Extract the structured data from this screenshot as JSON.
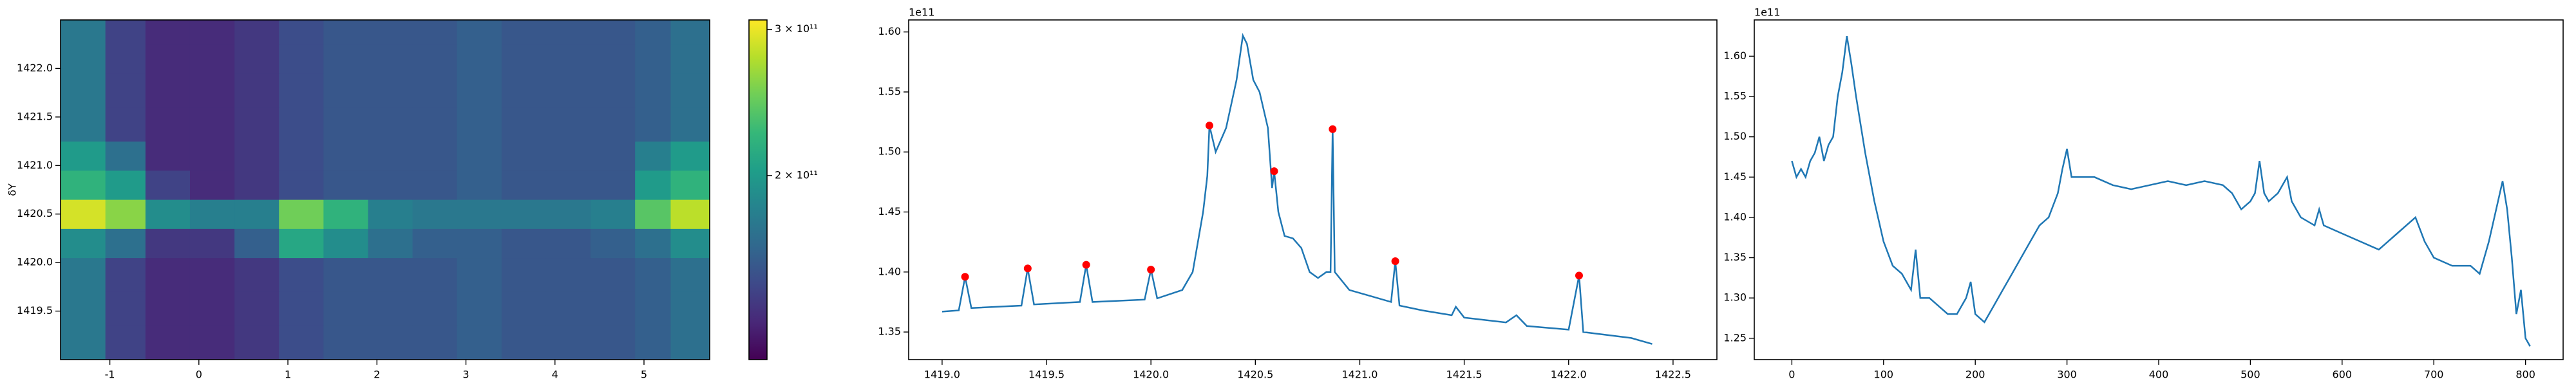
{
  "chart_data": [
    {
      "type": "heatmap",
      "y_label": "δY",
      "colormap": "viridis",
      "xlim": [
        -1.554,
        5.738
      ],
      "ylim": [
        1419.0,
        1422.5
      ],
      "xticks": [
        -1,
        0,
        1,
        2,
        3,
        4,
        5
      ],
      "yticks": [
        1419.5,
        {
          "value": 1420.0,
          "label": "1420.0"
        },
        1420.5,
        {
          "value": 1421.0,
          "label": "1421.0"
        },
        1421.5,
        {
          "value": 1422.0,
          "label": "1422.0"
        }
      ],
      "xbins": [
        -1.55,
        -1.05,
        -0.6,
        -0.1,
        0.4,
        0.9,
        1.4,
        1.9,
        2.4,
        2.9,
        3.4,
        3.9,
        4.4,
        4.9,
        5.3,
        5.74
      ],
      "ybins": [
        1419.0,
        1419.35,
        1419.7,
        1420.05,
        1420.35,
        1420.65,
        1420.95,
        1421.25,
        1421.6,
        1421.95,
        1422.25,
        1422.5
      ],
      "z": [
        [
          175000000000.0,
          145000000000.0,
          135000000000.0,
          135000000000.0,
          140000000000.0,
          150000000000.0,
          155000000000.0,
          155000000000.0,
          155000000000.0,
          160000000000.0,
          155000000000.0,
          155000000000.0,
          155000000000.0,
          160000000000.0,
          170000000000.0
        ],
        [
          175000000000.0,
          145000000000.0,
          135000000000.0,
          135000000000.0,
          140000000000.0,
          150000000000.0,
          155000000000.0,
          155000000000.0,
          155000000000.0,
          160000000000.0,
          155000000000.0,
          155000000000.0,
          155000000000.0,
          160000000000.0,
          170000000000.0
        ],
        [
          175000000000.0,
          145000000000.0,
          135000000000.0,
          135000000000.0,
          140000000000.0,
          150000000000.0,
          155000000000.0,
          155000000000.0,
          155000000000.0,
          160000000000.0,
          155000000000.0,
          155000000000.0,
          155000000000.0,
          160000000000.0,
          170000000000.0
        ],
        [
          190000000000.0,
          170000000000.0,
          140000000000.0,
          140000000000.0,
          160000000000.0,
          210000000000.0,
          190000000000.0,
          170000000000.0,
          160000000000.0,
          160000000000.0,
          155000000000.0,
          155000000000.0,
          160000000000.0,
          170000000000.0,
          190000000000.0
        ],
        [
          290000000000.0,
          260000000000.0,
          190000000000.0,
          180000000000.0,
          180000000000.0,
          250000000000.0,
          220000000000.0,
          180000000000.0,
          175000000000.0,
          175000000000.0,
          175000000000.0,
          175000000000.0,
          180000000000.0,
          240000000000.0,
          280000000000.0
        ],
        [
          220000000000.0,
          200000000000.0,
          145000000000.0,
          135000000000.0,
          140000000000.0,
          150000000000.0,
          155000000000.0,
          155000000000.0,
          155000000000.0,
          160000000000.0,
          155000000000.0,
          155000000000.0,
          155000000000.0,
          200000000000.0,
          220000000000.0
        ],
        [
          200000000000.0,
          170000000000.0,
          135000000000.0,
          135000000000.0,
          140000000000.0,
          150000000000.0,
          155000000000.0,
          155000000000.0,
          155000000000.0,
          160000000000.0,
          155000000000.0,
          155000000000.0,
          155000000000.0,
          180000000000.0,
          200000000000.0
        ],
        [
          175000000000.0,
          145000000000.0,
          135000000000.0,
          135000000000.0,
          140000000000.0,
          150000000000.0,
          155000000000.0,
          155000000000.0,
          155000000000.0,
          160000000000.0,
          155000000000.0,
          155000000000.0,
          155000000000.0,
          160000000000.0,
          170000000000.0
        ],
        [
          175000000000.0,
          145000000000.0,
          135000000000.0,
          135000000000.0,
          140000000000.0,
          150000000000.0,
          155000000000.0,
          155000000000.0,
          155000000000.0,
          160000000000.0,
          155000000000.0,
          155000000000.0,
          155000000000.0,
          160000000000.0,
          170000000000.0
        ],
        [
          175000000000.0,
          145000000000.0,
          135000000000.0,
          135000000000.0,
          140000000000.0,
          150000000000.0,
          155000000000.0,
          155000000000.0,
          155000000000.0,
          160000000000.0,
          155000000000.0,
          155000000000.0,
          155000000000.0,
          160000000000.0,
          170000000000.0
        ],
        [
          175000000000.0,
          145000000000.0,
          135000000000.0,
          135000000000.0,
          140000000000.0,
          150000000000.0,
          155000000000.0,
          155000000000.0,
          155000000000.0,
          160000000000.0,
          155000000000.0,
          155000000000.0,
          155000000000.0,
          160000000000.0,
          170000000000.0
        ]
      ],
      "clim": [
        120000000000.0,
        308000000000.0
      ],
      "clog": true,
      "cticks": [
        {
          "value": 200000000000.0,
          "label": "2 × 10¹¹"
        },
        {
          "value": 300000000000.0,
          "label": "3 × 10¹¹"
        }
      ]
    },
    {
      "type": "line",
      "offset_label": "1e11",
      "color": "#1f77b4",
      "xlim": [
        1418.84,
        1422.71
      ],
      "ylim": [
        1.327,
        1.61
      ],
      "xticks": [
        {
          "value": 1419.0,
          "label": "1419.0"
        },
        1419.5,
        {
          "value": 1420.0,
          "label": "1420.0"
        },
        1420.5,
        {
          "value": 1421.0,
          "label": "1421.0"
        },
        1421.5,
        {
          "value": 1422.0,
          "label": "1422.0"
        },
        1422.5
      ],
      "yticks": [
        1.35,
        {
          "value": 1.4,
          "label": "1.40"
        },
        1.45,
        {
          "value": 1.5,
          "label": "1.50"
        },
        1.55,
        {
          "value": 1.6,
          "label": "1.60"
        }
      ],
      "x": [
        1419.0,
        1419.08,
        1419.11,
        1419.14,
        1419.38,
        1419.41,
        1419.44,
        1419.66,
        1419.69,
        1419.72,
        1419.97,
        1420.0,
        1420.03,
        1420.15,
        1420.2,
        1420.25,
        1420.27,
        1420.28,
        1420.31,
        1420.36,
        1420.41,
        1420.44,
        1420.46,
        1420.49,
        1420.52,
        1420.56,
        1420.58,
        1420.59,
        1420.61,
        1420.64,
        1420.68,
        1420.72,
        1420.76,
        1420.8,
        1420.84,
        1420.86,
        1420.87,
        1420.88,
        1420.95,
        1421.05,
        1421.15,
        1421.17,
        1421.19,
        1421.3,
        1421.44,
        1421.46,
        1421.5,
        1421.7,
        1421.75,
        1421.8,
        1422.0,
        1422.05,
        1422.07,
        1422.3,
        1422.4
      ],
      "values": [
        1.367,
        1.368,
        1.396,
        1.37,
        1.372,
        1.403,
        1.373,
        1.375,
        1.406,
        1.375,
        1.377,
        1.402,
        1.378,
        1.385,
        1.4,
        1.45,
        1.48,
        1.522,
        1.5,
        1.52,
        1.56,
        1.597,
        1.59,
        1.56,
        1.55,
        1.52,
        1.47,
        1.484,
        1.45,
        1.43,
        1.428,
        1.42,
        1.4,
        1.395,
        1.4,
        1.4,
        1.519,
        1.4,
        1.385,
        1.38,
        1.375,
        1.409,
        1.372,
        1.368,
        1.364,
        1.371,
        1.362,
        1.358,
        1.364,
        1.355,
        1.352,
        1.397,
        1.35,
        1.345,
        1.34
      ],
      "markers": {
        "color": "red",
        "x": [
          1419.11,
          1419.41,
          1419.69,
          1420.0,
          1420.28,
          1420.59,
          1420.87,
          1421.17,
          1422.05
        ],
        "values": [
          1.396,
          1.403,
          1.406,
          1.402,
          1.522,
          1.484,
          1.519,
          1.409,
          1.397
        ]
      }
    },
    {
      "type": "line",
      "offset_label": "1e11",
      "color": "#1f77b4",
      "xlim": [
        -41,
        841
      ],
      "ylim": [
        1.2235,
        1.645
      ],
      "xticks": [
        0,
        100,
        200,
        300,
        400,
        500,
        600,
        700,
        800
      ],
      "yticks": [
        1.25,
        {
          "value": 1.3,
          "label": "1.30"
        },
        1.35,
        {
          "value": 1.4,
          "label": "1.40"
        },
        1.45,
        {
          "value": 1.5,
          "label": "1.50"
        },
        1.55,
        {
          "value": 1.6,
          "label": "1.60"
        }
      ],
      "x": [
        0,
        5,
        10,
        15,
        20,
        25,
        30,
        35,
        40,
        45,
        50,
        55,
        60,
        65,
        70,
        80,
        90,
        100,
        110,
        120,
        130,
        135,
        140,
        150,
        160,
        170,
        180,
        190,
        195,
        200,
        210,
        220,
        230,
        240,
        250,
        260,
        270,
        280,
        290,
        295,
        300,
        305,
        315,
        330,
        350,
        370,
        390,
        410,
        430,
        450,
        470,
        480,
        490,
        500,
        505,
        510,
        515,
        520,
        530,
        540,
        545,
        555,
        570,
        575,
        580,
        600,
        620,
        640,
        660,
        680,
        690,
        700,
        720,
        740,
        750,
        760,
        770,
        775,
        780,
        785,
        790,
        795,
        800,
        805
      ],
      "values": [
        1.47,
        1.45,
        1.46,
        1.45,
        1.47,
        1.48,
        1.5,
        1.47,
        1.49,
        1.5,
        1.55,
        1.58,
        1.625,
        1.59,
        1.55,
        1.48,
        1.42,
        1.37,
        1.34,
        1.33,
        1.31,
        1.36,
        1.3,
        1.3,
        1.29,
        1.28,
        1.28,
        1.3,
        1.32,
        1.28,
        1.27,
        1.29,
        1.31,
        1.33,
        1.35,
        1.37,
        1.39,
        1.4,
        1.43,
        1.46,
        1.485,
        1.45,
        1.45,
        1.45,
        1.44,
        1.435,
        1.44,
        1.445,
        1.44,
        1.445,
        1.44,
        1.43,
        1.41,
        1.42,
        1.43,
        1.47,
        1.43,
        1.42,
        1.43,
        1.45,
        1.42,
        1.4,
        1.39,
        1.41,
        1.39,
        1.38,
        1.37,
        1.36,
        1.38,
        1.4,
        1.37,
        1.35,
        1.34,
        1.34,
        1.33,
        1.37,
        1.42,
        1.445,
        1.41,
        1.35,
        1.28,
        1.31,
        1.25,
        1.24
      ]
    }
  ]
}
